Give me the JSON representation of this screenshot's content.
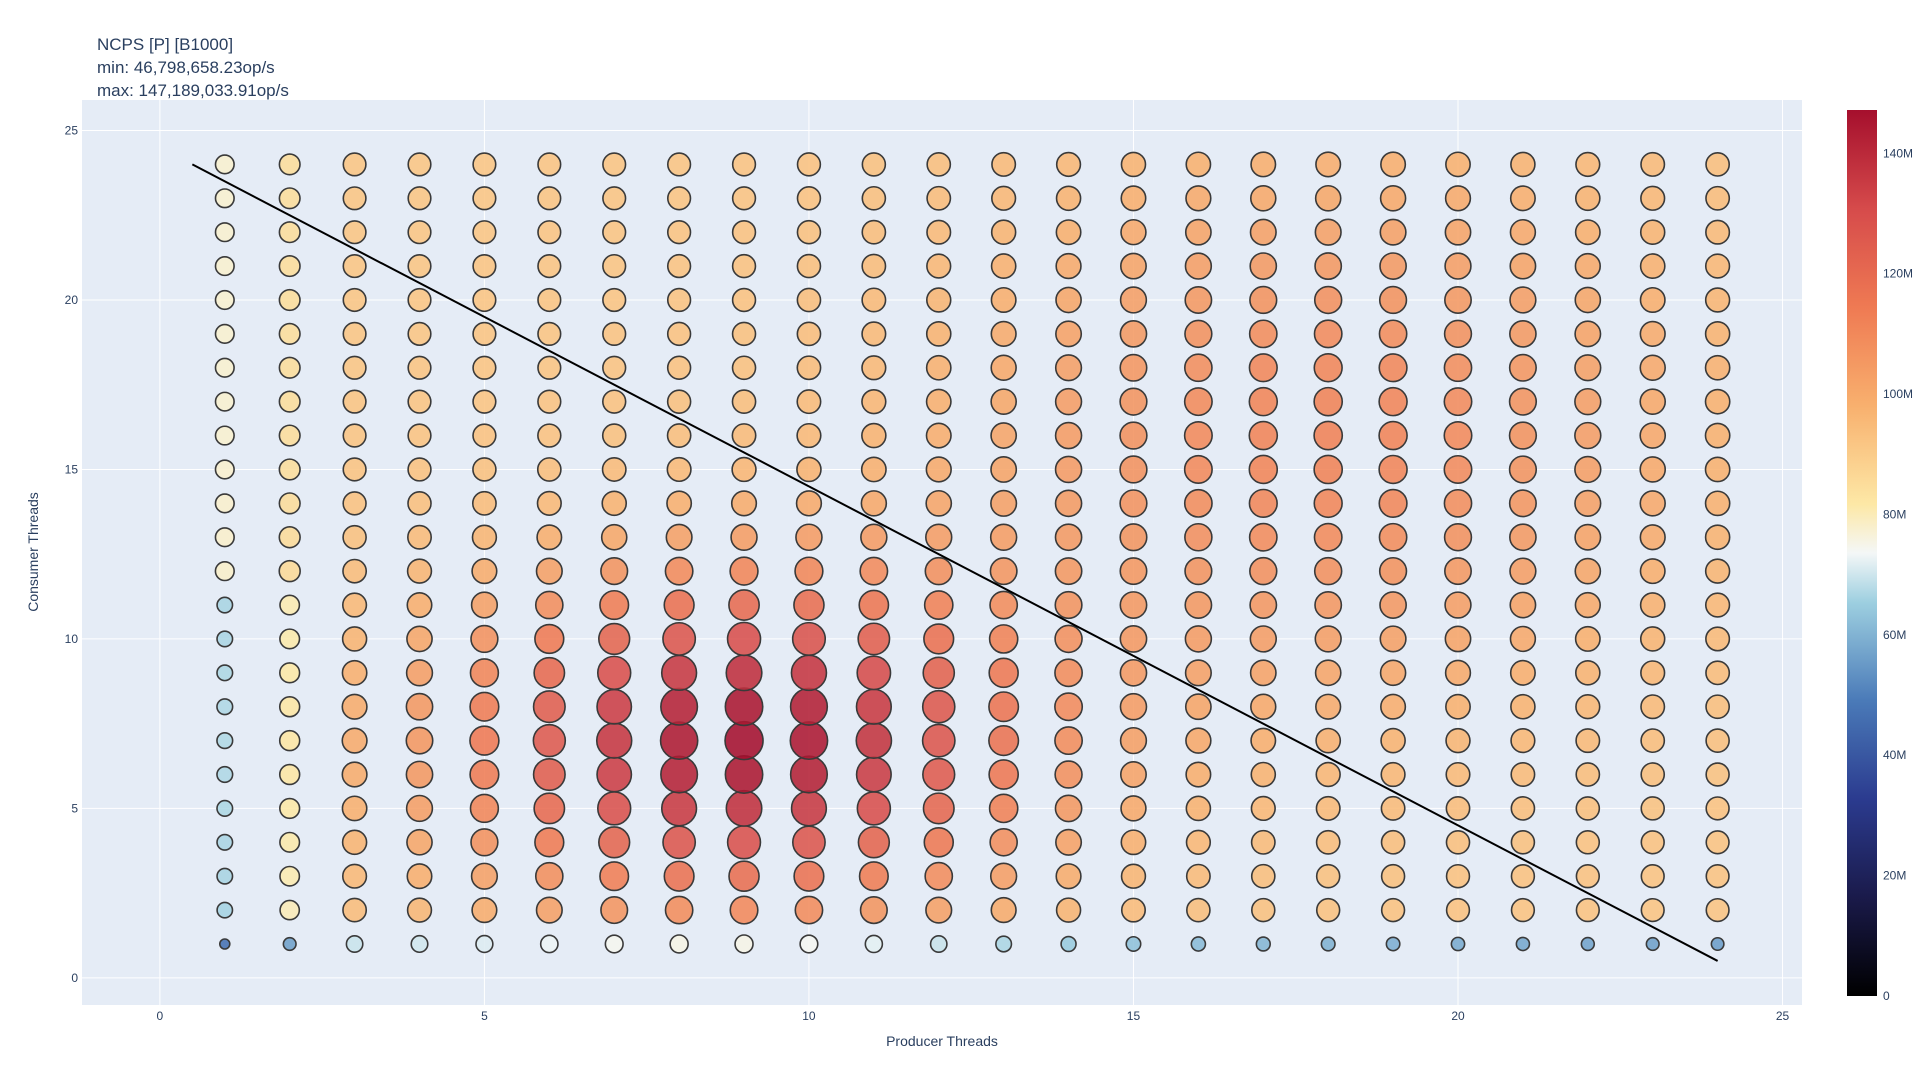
{
  "chart_data": {
    "type": "scatter",
    "title": "NCPS [P] [B1000]",
    "subtitle_lines": [
      "min: 46,798,658.23op/s",
      "max: 147,189,033.91op/s"
    ],
    "xlabel": "Producer Threads",
    "ylabel": "Consumer Threads",
    "xlim": [
      -1.2,
      25.3
    ],
    "ylim": [
      -0.8,
      25.9
    ],
    "xticks": [
      0,
      5,
      10,
      15,
      20,
      25
    ],
    "yticks": [
      0,
      5,
      10,
      15,
      20,
      25
    ],
    "grid": true,
    "colorbar": {
      "range": [
        0,
        147189033.91
      ],
      "ticks": [
        0,
        20000000,
        40000000,
        60000000,
        80000000,
        100000000,
        120000000,
        140000000
      ],
      "tick_labels": [
        "0",
        "20M",
        "40M",
        "60M",
        "80M",
        "100M",
        "120M",
        "140M"
      ],
      "colorscale": [
        [
          0.0,
          "#000000"
        ],
        [
          0.111,
          "#1a1a4a"
        ],
        [
          0.222,
          "#2b3b8f"
        ],
        [
          0.333,
          "#4a7ab8"
        ],
        [
          0.444,
          "#9dcfe0"
        ],
        [
          0.5,
          "#f4f7f7"
        ],
        [
          0.555,
          "#fde8a6"
        ],
        [
          0.666,
          "#f8b06e"
        ],
        [
          0.777,
          "#ef7a53"
        ],
        [
          0.888,
          "#d64b4b"
        ],
        [
          1.0,
          "#a50f2d"
        ]
      ]
    },
    "trend_line": {
      "x": [
        0.5,
        24
      ],
      "y": [
        24,
        0.5
      ]
    },
    "producers": [
      1,
      2,
      3,
      4,
      5,
      6,
      7,
      8,
      9,
      10,
      11,
      12,
      13,
      14,
      15,
      16,
      17,
      18,
      19,
      20,
      21,
      22,
      23,
      24
    ],
    "consumers": [
      1,
      2,
      3,
      4,
      5,
      6,
      7,
      8,
      9,
      10,
      11,
      12,
      13,
      14,
      15,
      16,
      17,
      18,
      19,
      20,
      21,
      22,
      23,
      24
    ],
    "color_scale_description": "RdYlBu reversed (high values red)",
    "sample_points": [
      {
        "x": 1,
        "y": 2,
        "value": 46798658.23
      },
      {
        "x": 8,
        "y": 6,
        "value": 147189033.91
      }
    ]
  }
}
